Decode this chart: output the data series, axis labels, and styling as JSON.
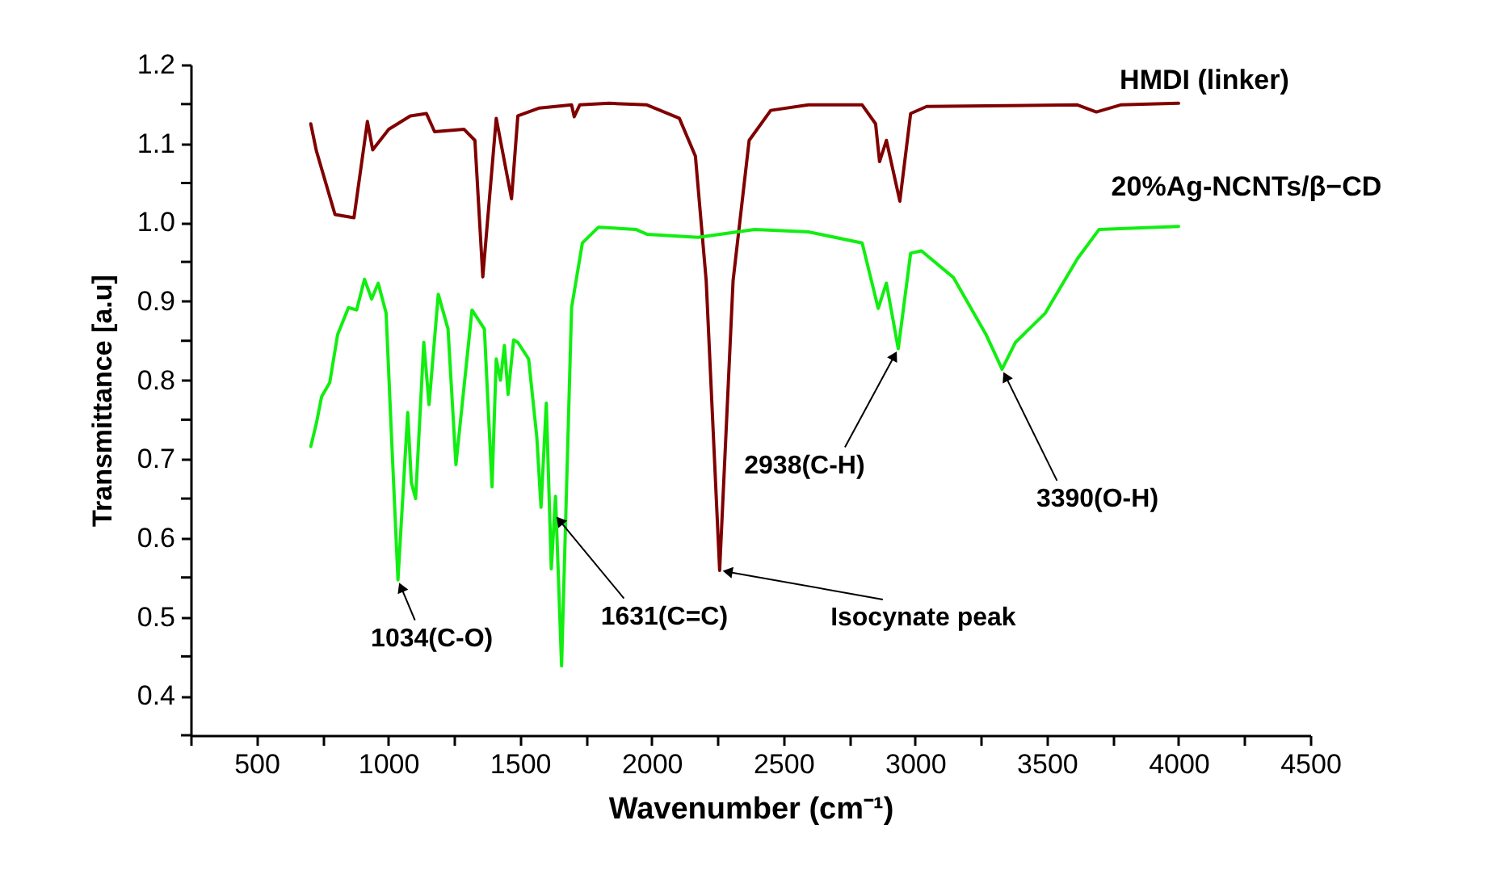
{
  "chart_data": {
    "type": "line",
    "xlabel": "Wavenumber (cm⁻¹)",
    "ylabel": "Transmittance [a.u]",
    "xlim": [
      250,
      4500
    ],
    "ylim": [
      0.35,
      1.2
    ],
    "xticks": [
      {
        "value": 250,
        "label": null
      },
      500,
      {
        "value": 750,
        "label": null
      },
      1000,
      {
        "value": 1250,
        "label": null
      },
      1500,
      {
        "value": 1750,
        "label": null
      },
      2000,
      {
        "value": 2250,
        "label": null
      },
      2500,
      {
        "value": 2750,
        "label": null
      },
      3000,
      {
        "value": 3250,
        "label": null
      },
      3500,
      {
        "value": 3750,
        "label": null
      },
      4000,
      {
        "value": 4250,
        "label": null
      },
      4500
    ],
    "yticks": [
      {
        "value": 0.35,
        "label": null
      },
      0.4,
      {
        "value": 0.45,
        "label": null
      },
      0.5,
      {
        "value": 0.55,
        "label": null
      },
      0.6,
      {
        "value": 0.65,
        "label": null
      },
      0.7,
      {
        "value": 0.75,
        "label": null
      },
      0.8,
      {
        "value": 0.85,
        "label": null
      },
      0.9,
      {
        "value": 0.95,
        "label": null
      },
      {
        "value": 1.0,
        "label": "1.0"
      },
      {
        "value": 1.05,
        "label": null
      },
      1.1,
      {
        "value": 1.15,
        "label": null
      },
      1.2
    ],
    "series": [
      {
        "name": "HMDI (linker)",
        "color": "#800000",
        "x": [
          706,
          727,
          798,
          870,
          921,
          941,
          1002,
          1084,
          1145,
          1176,
          1288,
          1329,
          1359,
          1410,
          1468,
          1492,
          1574,
          1696,
          1706,
          1727,
          1839,
          1982,
          2105,
          2166,
          2207,
          2258,
          2309,
          2370,
          2452,
          2595,
          2799,
          2850,
          2865,
          2891,
          2942,
          2983,
          3044,
          3616,
          3688,
          3780,
          4000
        ],
        "values": [
          1.125,
          1.091,
          1.01,
          1.006,
          1.128,
          1.092,
          1.118,
          1.135,
          1.138,
          1.115,
          1.118,
          1.104,
          0.931,
          1.132,
          1.03,
          1.135,
          1.145,
          1.149,
          1.134,
          1.149,
          1.151,
          1.149,
          1.132,
          1.084,
          0.926,
          0.559,
          0.926,
          1.104,
          1.142,
          1.149,
          1.149,
          1.125,
          1.077,
          1.104,
          1.027,
          1.138,
          1.147,
          1.149,
          1.14,
          1.149,
          1.151
        ]
      },
      {
        "name": "20%Ag-NCNTs/β−CD",
        "color": "#11ee11",
        "x": [
          706,
          727,
          747,
          778,
          808,
          849,
          880,
          910,
          937,
          962,
          992,
          1012,
          1037,
          1074,
          1088,
          1104,
          1135,
          1155,
          1190,
          1227,
          1257,
          1318,
          1365,
          1394,
          1410,
          1426,
          1441,
          1455,
          1476,
          1492,
          1533,
          1564,
          1580,
          1600,
          1619,
          1635,
          1658,
          1696,
          1737,
          1798,
          1941,
          1982,
          2176,
          2391,
          2595,
          2799,
          2860,
          2891,
          2936,
          2983,
          3024,
          3146,
          3269,
          3330,
          3381,
          3494,
          3616,
          3698,
          4000
        ],
        "values": [
          0.716,
          0.745,
          0.779,
          0.797,
          0.858,
          0.892,
          0.889,
          0.928,
          0.903,
          0.923,
          0.885,
          0.732,
          0.547,
          0.759,
          0.67,
          0.65,
          0.848,
          0.769,
          0.909,
          0.865,
          0.693,
          0.889,
          0.865,
          0.665,
          0.827,
          0.8,
          0.844,
          0.782,
          0.851,
          0.848,
          0.827,
          0.728,
          0.639,
          0.771,
          0.561,
          0.653,
          0.438,
          0.892,
          0.974,
          0.994,
          0.991,
          0.985,
          0.981,
          0.991,
          0.988,
          0.974,
          0.891,
          0.923,
          0.84,
          0.961,
          0.964,
          0.93,
          0.858,
          0.814,
          0.848,
          0.885,
          0.954,
          0.991,
          0.995
        ]
      }
    ],
    "annotations": [
      {
        "text": "1034(C-O)",
        "x": 1037,
        "y": 0.547
      },
      {
        "text": "1631(C=C)",
        "x": 1631,
        "y": 0.63
      },
      {
        "text": "Isocynate peak",
        "x": 2258,
        "y": 0.559
      },
      {
        "text": "2938(C-H)",
        "x": 2936,
        "y": 0.84
      },
      {
        "text": "3390(O-H)",
        "x": 3330,
        "y": 0.814
      }
    ]
  }
}
